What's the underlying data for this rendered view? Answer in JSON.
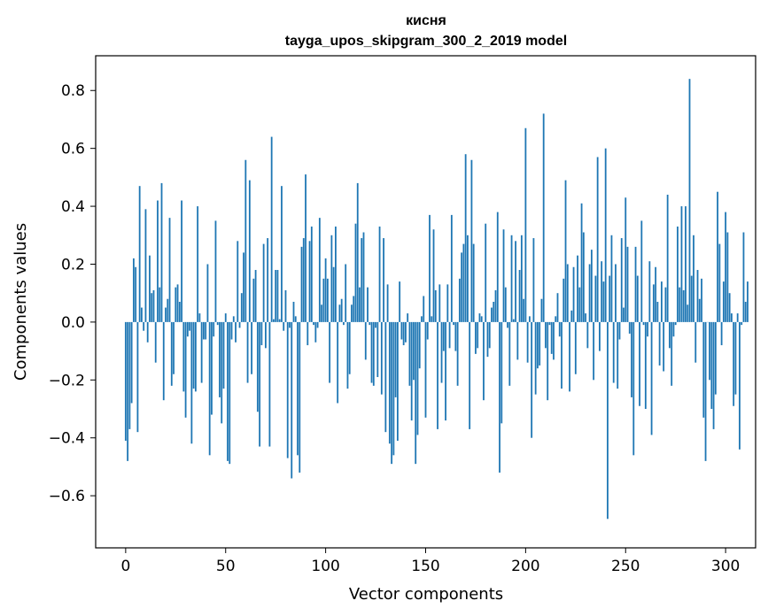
{
  "chart_data": {
    "type": "bar",
    "title": "кисня",
    "subtitle": "tayga_upos_skipgram_300_2_2019 model",
    "xlabel": "Vector components",
    "ylabel": "Components values",
    "xlim": [
      -15,
      315
    ],
    "ylim": [
      -0.78,
      0.92
    ],
    "xticks": [
      0,
      50,
      100,
      150,
      200,
      250,
      300
    ],
    "yticks": [
      -0.6,
      -0.4,
      -0.2,
      0.0,
      0.2,
      0.4,
      0.6,
      0.8
    ],
    "ytick_labels": [
      "−0.6",
      "−0.4",
      "−0.2",
      "0.0",
      "0.2",
      "0.4",
      "0.6",
      "0.8"
    ],
    "bar_color": "#1f77b4",
    "series": [
      {
        "name": "кисня",
        "values": [
          -0.41,
          -0.48,
          -0.37,
          -0.28,
          0.22,
          0.19,
          -0.38,
          0.47,
          0.05,
          -0.03,
          0.39,
          -0.07,
          0.23,
          0.1,
          0.11,
          -0.14,
          0.42,
          0.12,
          0.48,
          -0.27,
          0.05,
          0.08,
          0.36,
          -0.22,
          -0.18,
          0.12,
          0.13,
          0.07,
          0.42,
          -0.24,
          -0.33,
          -0.05,
          -0.03,
          -0.42,
          -0.23,
          -0.24,
          0.4,
          0.03,
          -0.21,
          -0.06,
          -0.06,
          0.2,
          -0.46,
          -0.32,
          -0.05,
          0.35,
          -0.01,
          -0.26,
          -0.35,
          -0.23,
          0.03,
          -0.48,
          -0.49,
          -0.06,
          0.02,
          -0.07,
          0.28,
          -0.02,
          0.1,
          0.24,
          0.56,
          -0.21,
          0.49,
          -0.18,
          0.15,
          0.18,
          -0.31,
          -0.43,
          -0.08,
          0.27,
          -0.09,
          0.29,
          -0.43,
          0.64,
          0.01,
          0.18,
          0.18,
          0.01,
          0.47,
          -0.03,
          0.11,
          -0.47,
          -0.02,
          -0.54,
          0.07,
          0.02,
          -0.46,
          -0.52,
          0.26,
          0.29,
          0.51,
          -0.08,
          0.28,
          0.33,
          -0.01,
          -0.07,
          -0.02,
          0.36,
          0.06,
          0.15,
          0.22,
          0.15,
          -0.21,
          0.3,
          0.19,
          0.33,
          -0.28,
          0.06,
          0.08,
          -0.01,
          0.2,
          -0.23,
          -0.18,
          0.06,
          0.09,
          0.34,
          0.48,
          0.12,
          0.29,
          0.31,
          -0.13,
          0.12,
          -0.01,
          -0.21,
          -0.22,
          -0.02,
          -0.19,
          0.33,
          -0.25,
          0.29,
          -0.38,
          0.13,
          -0.42,
          -0.49,
          -0.46,
          -0.26,
          -0.41,
          0.14,
          -0.06,
          -0.08,
          -0.07,
          0.03,
          -0.22,
          -0.34,
          -0.2,
          -0.49,
          -0.39,
          -0.16,
          0.02,
          0.09,
          -0.33,
          -0.06,
          0.37,
          0.02,
          0.32,
          0.11,
          -0.37,
          0.13,
          -0.21,
          -0.1,
          -0.34,
          0.13,
          -0.09,
          0.37,
          -0.01,
          -0.1,
          -0.22,
          0.15,
          0.24,
          0.27,
          0.58,
          0.3,
          -0.37,
          0.56,
          0.27,
          -0.11,
          -0.09,
          0.03,
          0.02,
          -0.27,
          0.34,
          -0.12,
          -0.09,
          0.05,
          0.07,
          0.11,
          0.38,
          -0.52,
          -0.35,
          0.32,
          0.12,
          -0.02,
          -0.22,
          0.3,
          0.01,
          0.28,
          -0.13,
          0.18,
          0.3,
          0.08,
          0.67,
          -0.14,
          0.02,
          -0.4,
          0.29,
          -0.25,
          -0.16,
          -0.15,
          0.08,
          0.72,
          -0.09,
          -0.27,
          -0.01,
          -0.11,
          -0.13,
          0.02,
          0.1,
          -0.05,
          -0.23,
          0.15,
          0.49,
          0.2,
          -0.24,
          0.04,
          0.19,
          -0.18,
          0.23,
          0.12,
          0.41,
          0.31,
          0.03,
          -0.09,
          0.2,
          0.25,
          -0.2,
          0.16,
          0.57,
          -0.1,
          0.21,
          0.14,
          0.6,
          -0.68,
          0.16,
          0.3,
          -0.21,
          0.2,
          -0.23,
          -0.06,
          0.29,
          0.05,
          0.43,
          0.26,
          -0.04,
          -0.26,
          -0.46,
          0.26,
          0.16,
          -0.29,
          0.35,
          -0.01,
          -0.3,
          -0.05,
          0.21,
          -0.39,
          0.13,
          0.19,
          0.07,
          -0.15,
          0.14,
          -0.17,
          0.12,
          0.44,
          -0.09,
          -0.22,
          -0.05,
          -0.01,
          0.33,
          0.12,
          0.4,
          0.11,
          0.4,
          0.06,
          0.84,
          0.16,
          0.3,
          -0.14,
          0.18,
          0.08,
          0.15,
          -0.33,
          -0.48,
          0.0,
          -0.2,
          -0.3,
          -0.37,
          -0.25,
          0.45,
          0.27,
          -0.08,
          0.14,
          0.38,
          0.31,
          0.1,
          0.03,
          -0.29,
          -0.25,
          0.03,
          -0.44,
          -0.01,
          0.31,
          0.07,
          0.14
        ]
      }
    ]
  }
}
